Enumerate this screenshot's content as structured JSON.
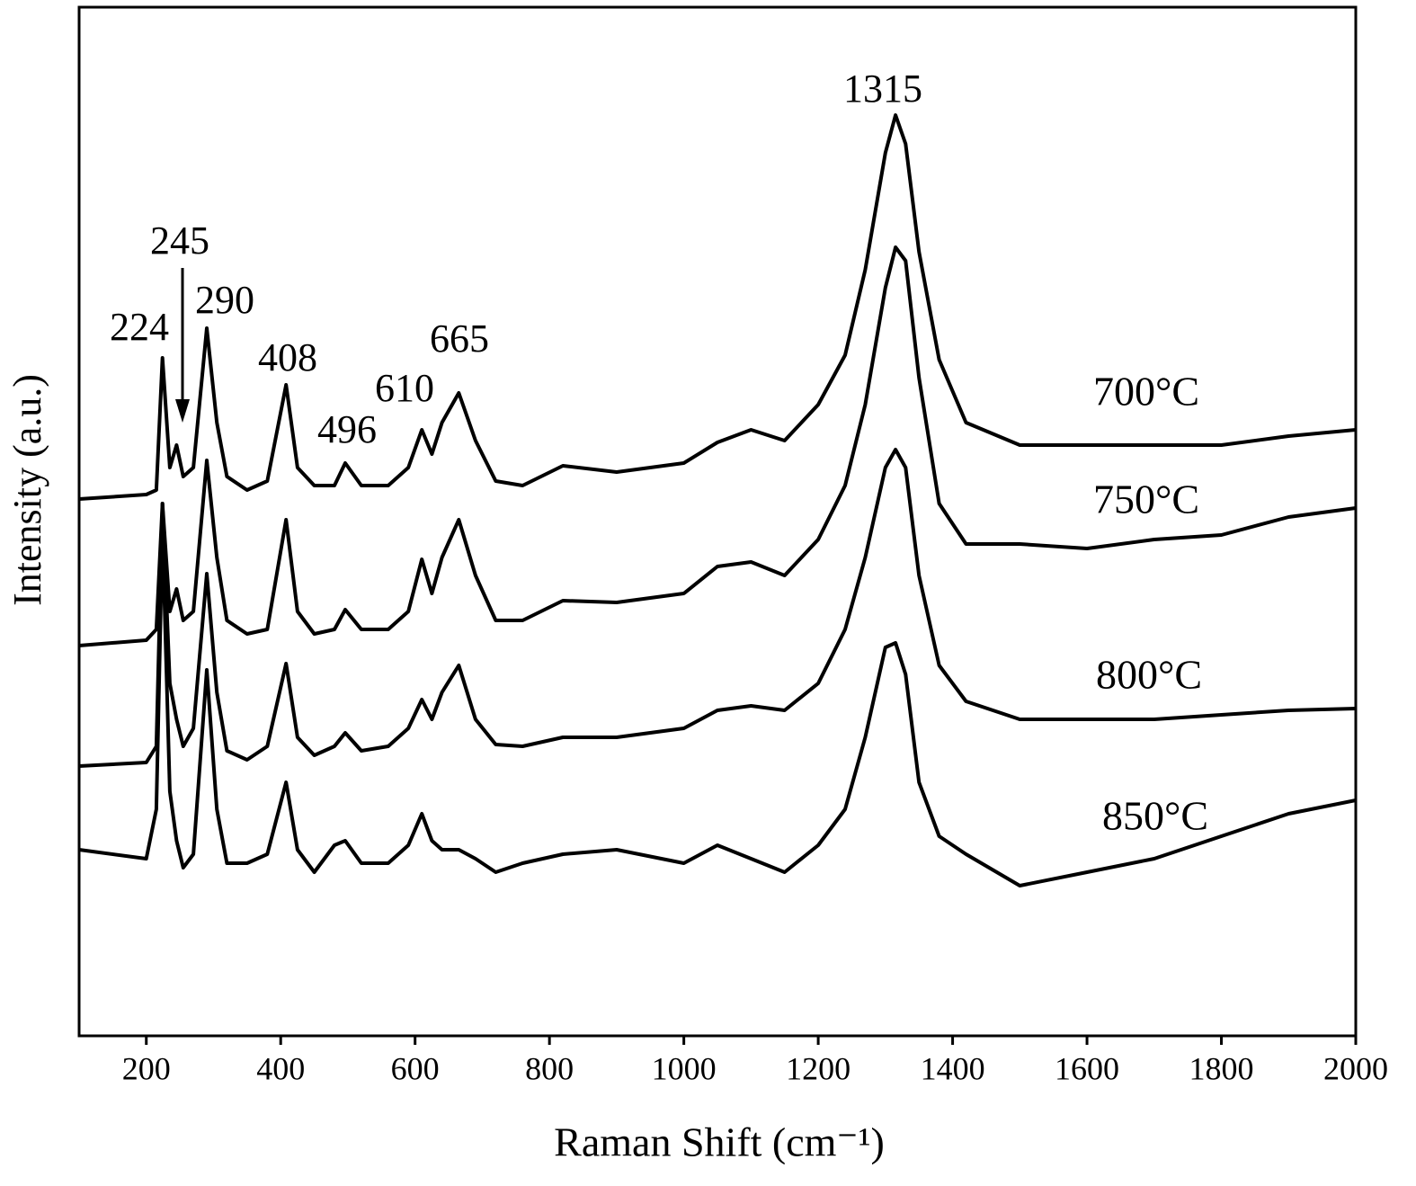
{
  "chart_data": {
    "type": "line",
    "xlabel": "Raman Shift (cm⁻¹)",
    "ylabel": "Intensity (a.u.)",
    "xlim": [
      100,
      2000
    ],
    "xticks": [
      200,
      400,
      600,
      800,
      1000,
      1200,
      1400,
      1600,
      1800,
      2000
    ],
    "ylim": [
      0,
      1144
    ],
    "x": [
      100,
      200,
      215,
      224,
      235,
      245,
      255,
      270,
      290,
      305,
      320,
      350,
      380,
      408,
      425,
      450,
      480,
      496,
      520,
      560,
      590,
      610,
      625,
      640,
      665,
      690,
      720,
      760,
      820,
      900,
      1000,
      1050,
      1100,
      1150,
      1200,
      1240,
      1270,
      1300,
      1315,
      1330,
      1350,
      1380,
      1420,
      1500,
      1600,
      1700,
      1800,
      1900,
      2000
    ],
    "series": [
      {
        "name": "700°C",
        "color": "#000000",
        "values": [
          597,
          602,
          607,
          754,
          632,
          657,
          622,
          632,
          787,
          682,
          622,
          607,
          617,
          724,
          632,
          612,
          612,
          637,
          612,
          612,
          632,
          674,
          647,
          682,
          715,
          662,
          617,
          612,
          634,
          627,
          637,
          660,
          674,
          662,
          702,
          757,
          852,
          982,
          1024,
          992,
          872,
          752,
          682,
          657,
          657,
          657,
          657,
          667,
          674
        ]
      },
      {
        "name": "750°C",
        "color": "#000000",
        "values": [
          434,
          440,
          452,
          592,
          472,
          497,
          462,
          472,
          640,
          532,
          462,
          447,
          452,
          574,
          472,
          447,
          452,
          474,
          452,
          452,
          472,
          530,
          492,
          532,
          574,
          512,
          462,
          462,
          484,
          482,
          492,
          522,
          527,
          512,
          552,
          612,
          702,
          832,
          877,
          862,
          732,
          592,
          547,
          547,
          542,
          552,
          557,
          577,
          587
        ]
      },
      {
        "name": "800°C",
        "color": "#000000",
        "values": [
          300,
          304,
          322,
          592,
          392,
          352,
          322,
          342,
          514,
          382,
          317,
          307,
          322,
          414,
          332,
          312,
          322,
          337,
          317,
          322,
          342,
          374,
          352,
          382,
          412,
          352,
          324,
          322,
          332,
          332,
          342,
          362,
          367,
          362,
          392,
          452,
          532,
          632,
          652,
          632,
          512,
          412,
          372,
          352,
          352,
          352,
          357,
          362,
          364
        ]
      },
      {
        "name": "850°C",
        "color": "#000000",
        "values": [
          207,
          197,
          252,
          562,
          272,
          217,
          187,
          202,
          407,
          252,
          192,
          192,
          202,
          282,
          207,
          182,
          212,
          217,
          192,
          192,
          212,
          247,
          217,
          207,
          207,
          197,
          182,
          192,
          202,
          207,
          192,
          212,
          197,
          182,
          212,
          252,
          332,
          432,
          437,
          402,
          282,
          222,
          202,
          167,
          182,
          197,
          222,
          247,
          262
        ]
      }
    ],
    "annotations": [
      "224",
      "245",
      "290",
      "408",
      "496",
      "610",
      "665",
      "1315"
    ]
  }
}
